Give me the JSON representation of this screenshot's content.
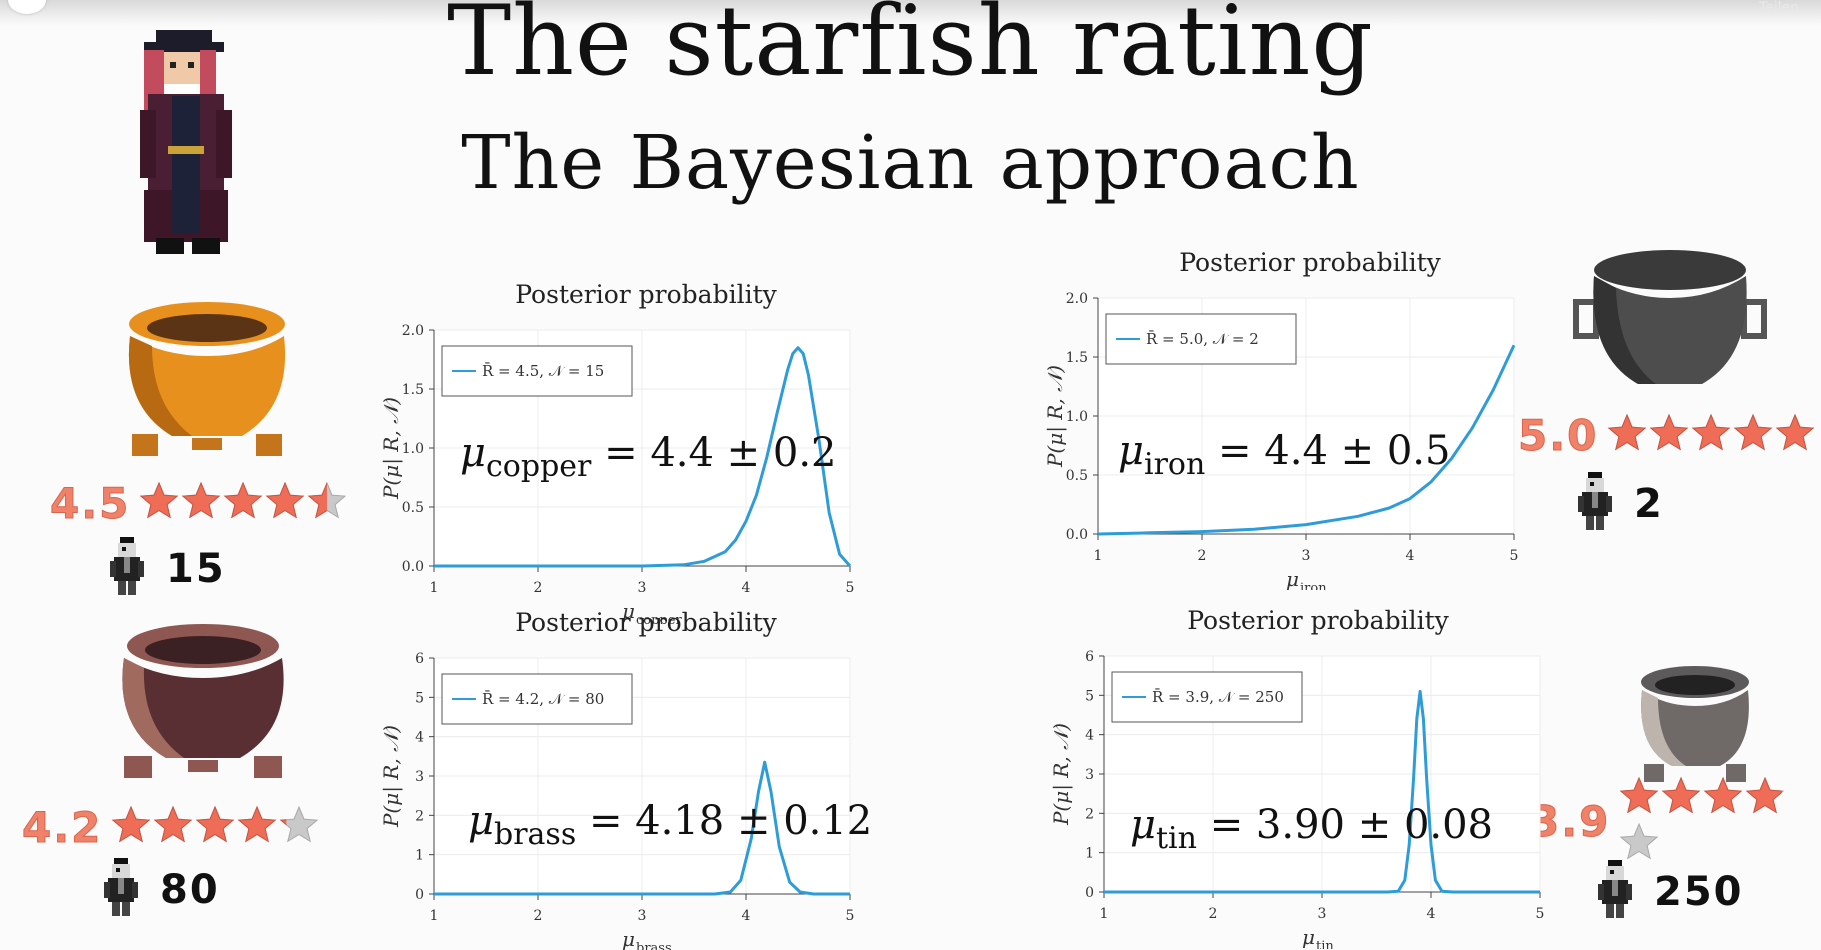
{
  "header": {
    "title": "The starfish rating",
    "subtitle": "The Bayesian approach",
    "share_label": "Teilen"
  },
  "colors": {
    "curve": "#2e9cd8",
    "rating_text": "#f0826a",
    "star_fill": "#ef6c57",
    "star_empty": "#c9c9c9"
  },
  "icons": {
    "pirate_character": "pirate-girl-icon",
    "person": "pirate-person-icon",
    "star": "starfish-icon"
  },
  "cauldrons": [
    {
      "material": "copper",
      "rating_value": "4.5",
      "stars": 4.5,
      "reviewer_count": "15",
      "plot": {
        "title": "Posterior probability",
        "legend": "R̄ = 4.5, 𝒩 = 15",
        "result_mu_text": "μ",
        "result_subscript": "copper",
        "result_value": "= 4.4 ± 0.2",
        "xlabel_symbol": "μ",
        "xlabel_subscript": "copper",
        "ylabel": "P(μ| R, 𝒩)"
      }
    },
    {
      "material": "brass",
      "rating_value": "4.2",
      "stars": 4.2,
      "reviewer_count": "80",
      "plot": {
        "title": "Posterior probability",
        "legend": "R̄ = 4.2, 𝒩 = 80",
        "result_mu_text": "μ",
        "result_subscript": "brass",
        "result_value": "= 4.18 ± 0.12",
        "xlabel_symbol": "μ",
        "xlabel_subscript": "brass",
        "ylabel": "P(μ| R, 𝒩)"
      }
    },
    {
      "material": "iron",
      "rating_value": "5.0",
      "stars": 5.0,
      "reviewer_count": "2",
      "plot": {
        "title": "Posterior probability",
        "legend": "R̄ = 5.0, 𝒩 = 2",
        "result_mu_text": "μ",
        "result_subscript": "iron",
        "result_value": "= 4.4 ± 0.5",
        "xlabel_symbol": "μ",
        "xlabel_subscript": "iron",
        "ylabel": "P(μ| R, 𝒩)"
      }
    },
    {
      "material": "tin",
      "rating_value": "3.9",
      "stars": 3.9,
      "reviewer_count": "250",
      "plot": {
        "title": "Posterior probability",
        "legend": "R̄ = 3.9, 𝒩 = 250",
        "result_mu_text": "μ",
        "result_subscript": "tin",
        "result_value": "= 3.90 ± 0.08",
        "xlabel_symbol": "μ",
        "xlabel_subscript": "tin",
        "ylabel": "P(μ| R, 𝒩)"
      }
    }
  ],
  "chart_data": [
    {
      "type": "line",
      "title": "Posterior probability",
      "xlabel": "μ copper",
      "ylabel": "P(μ| R, 𝒩)",
      "xlim": [
        1,
        5
      ],
      "ylim": [
        0,
        2.0
      ],
      "xticks": [
        "1",
        "2",
        "3",
        "4",
        "5"
      ],
      "yticks": [
        "0.0",
        "0.5",
        "1.0",
        "1.5",
        "2.0"
      ],
      "legend": "top-left",
      "grid": true,
      "series": [
        {
          "name": "R̄ = 4.5, 𝒩 = 15",
          "x": [
            1.0,
            2.0,
            3.0,
            3.4,
            3.6,
            3.8,
            3.9,
            4.0,
            4.1,
            4.2,
            4.3,
            4.4,
            4.45,
            4.5,
            4.55,
            4.6,
            4.7,
            4.8,
            4.9,
            5.0
          ],
          "y": [
            0.0,
            0.0,
            0.0,
            0.01,
            0.04,
            0.12,
            0.22,
            0.38,
            0.6,
            0.92,
            1.3,
            1.66,
            1.8,
            1.85,
            1.8,
            1.62,
            1.08,
            0.45,
            0.1,
            0.0
          ]
        }
      ]
    },
    {
      "type": "line",
      "title": "Posterior probability",
      "xlabel": "μ brass",
      "ylabel": "P(μ| R, 𝒩)",
      "xlim": [
        1,
        5
      ],
      "ylim": [
        0,
        6
      ],
      "xticks": [
        "1",
        "2",
        "3",
        "4",
        "5"
      ],
      "yticks": [
        "0",
        "1",
        "2",
        "3",
        "4",
        "5",
        "6"
      ],
      "legend": "top-left",
      "grid": true,
      "series": [
        {
          "name": "R̄ = 4.2, 𝒩 = 80",
          "x": [
            1.0,
            2.0,
            3.0,
            3.7,
            3.85,
            3.95,
            4.05,
            4.12,
            4.18,
            4.24,
            4.32,
            4.42,
            4.52,
            4.65,
            5.0
          ],
          "y": [
            0.0,
            0.0,
            0.0,
            0.0,
            0.05,
            0.35,
            1.4,
            2.6,
            3.35,
            2.6,
            1.2,
            0.3,
            0.05,
            0.0,
            0.0
          ]
        }
      ]
    },
    {
      "type": "line",
      "title": "Posterior probability",
      "xlabel": "μ iron",
      "ylabel": "P(μ| R, 𝒩)",
      "xlim": [
        1,
        5
      ],
      "ylim": [
        0,
        2.0
      ],
      "xticks": [
        "1",
        "2",
        "3",
        "4",
        "5"
      ],
      "yticks": [
        "0.0",
        "0.5",
        "1.0",
        "1.5",
        "2.0"
      ],
      "legend": "top-left",
      "grid": true,
      "series": [
        {
          "name": "R̄ = 5.0, 𝒩 = 2",
          "x": [
            1.0,
            1.5,
            2.0,
            2.5,
            3.0,
            3.5,
            3.8,
            4.0,
            4.2,
            4.4,
            4.6,
            4.8,
            5.0
          ],
          "y": [
            0.0,
            0.01,
            0.02,
            0.04,
            0.08,
            0.15,
            0.22,
            0.3,
            0.44,
            0.64,
            0.9,
            1.22,
            1.6
          ]
        }
      ]
    },
    {
      "type": "line",
      "title": "Posterior probability",
      "xlabel": "μ tin",
      "ylabel": "P(μ| R, 𝒩)",
      "xlim": [
        1,
        5
      ],
      "ylim": [
        0,
        6
      ],
      "xticks": [
        "1",
        "2",
        "3",
        "4",
        "5"
      ],
      "yticks": [
        "0",
        "1",
        "2",
        "3",
        "4",
        "5",
        "6"
      ],
      "legend": "top-left",
      "grid": true,
      "series": [
        {
          "name": "R̄ = 3.9, 𝒩 = 250",
          "x": [
            1.0,
            2.0,
            3.0,
            3.6,
            3.7,
            3.76,
            3.8,
            3.84,
            3.87,
            3.9,
            3.93,
            3.96,
            4.0,
            4.04,
            4.1,
            4.2,
            5.0
          ],
          "y": [
            0.0,
            0.0,
            0.0,
            0.0,
            0.02,
            0.3,
            1.2,
            2.9,
            4.4,
            5.1,
            4.4,
            2.9,
            1.2,
            0.3,
            0.02,
            0.0,
            0.0
          ]
        }
      ]
    }
  ]
}
